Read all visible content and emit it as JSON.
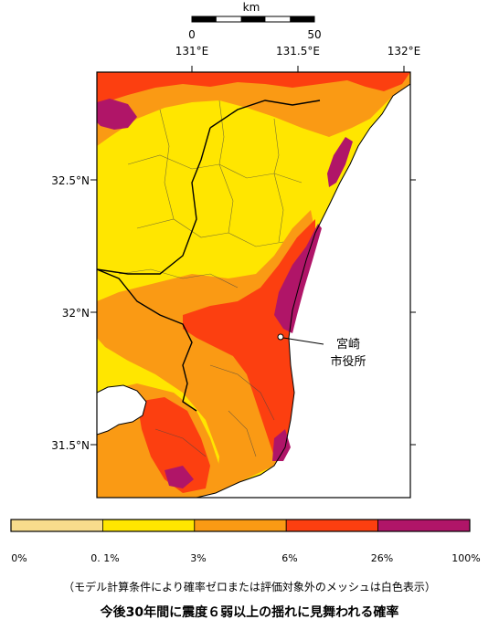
{
  "scale_bar": {
    "unit": "km",
    "labels": [
      "0",
      "50"
    ]
  },
  "longitude_labels": [
    "131°E",
    "131.5°E",
    "132°E"
  ],
  "latitude_labels": [
    "32.5°N",
    "32°N",
    "31.5°N"
  ],
  "city_label": {
    "line1": "宮崎",
    "line2": "市役所"
  },
  "legend": {
    "colors": [
      "#f8dc8c",
      "#ffe600",
      "#fa9a14",
      "#fc3f10",
      "#b01568"
    ],
    "labels": [
      "0%",
      "0. 1%",
      "3%",
      "6%",
      "26%",
      "100%"
    ]
  },
  "note": "（モデル計算条件により確率ゼロまたは評価対象外のメッシュは白色表示）",
  "caption": "今後30年間に震度６弱以上の揺れに見舞われる確率"
}
